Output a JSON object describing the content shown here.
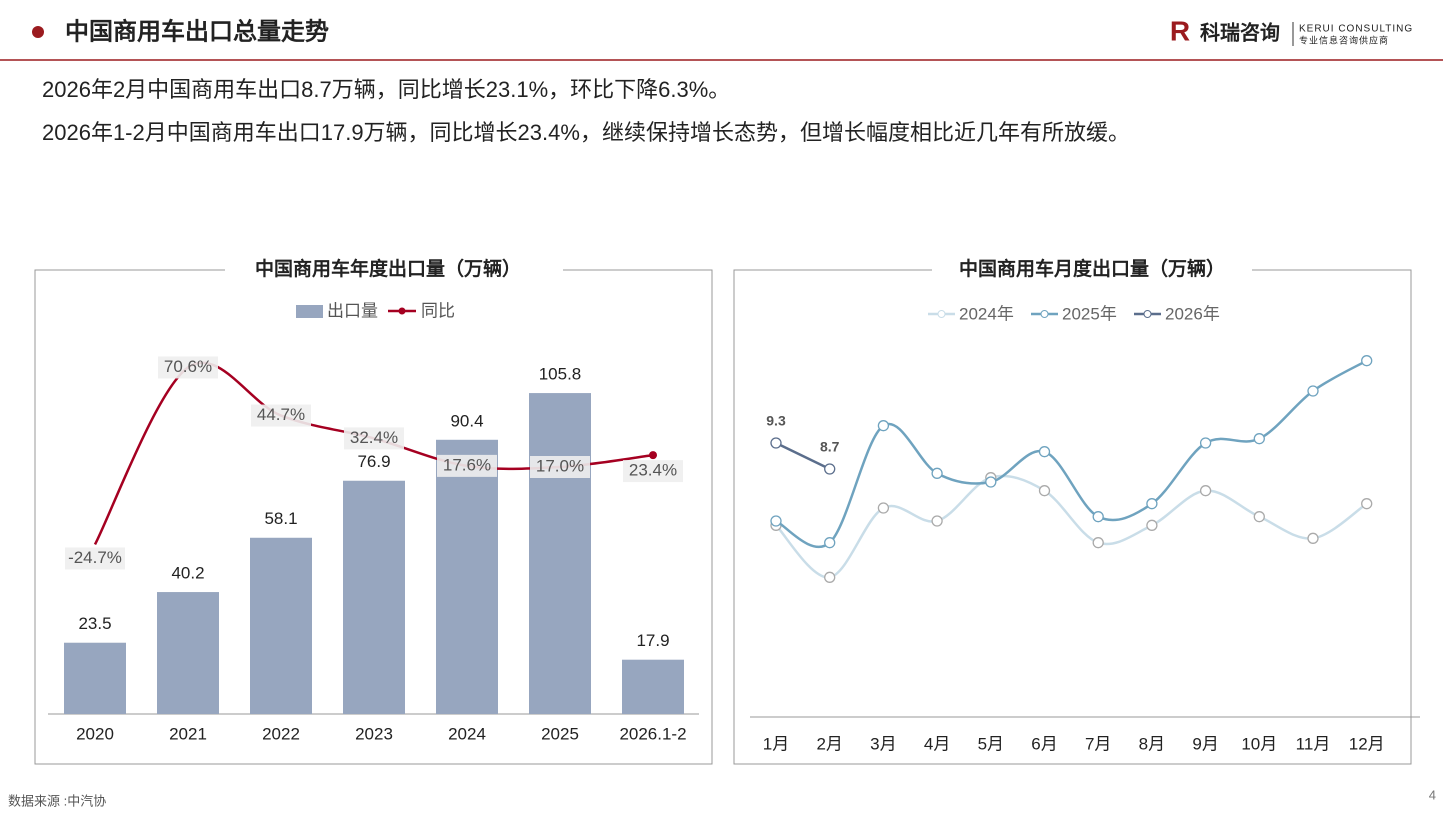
{
  "header": {
    "title": "中国商用车出口总量走势",
    "logo_mark": "R",
    "logo_name": "科瑞咨询",
    "logo_en": "KERUI CONSULTING",
    "logo_tagline": "专业信息咨询供应商"
  },
  "summary": [
    "2026年2月中国商用车出口8.7万辆，同比增长23.1%，环比下降6.3%。",
    "2026年1-2月中国商用车出口17.9万辆，同比增长23.4%，继续保持增长态势，但增长幅度相比近几年有所放缓。"
  ],
  "source": "数据来源 :中汽协",
  "page_number": "4",
  "chart_data": [
    {
      "type": "combo",
      "title": "中国商用车年度出口量（万辆）",
      "categories": [
        "2020",
        "2021",
        "2022",
        "2023",
        "2024",
        "2025",
        "2026.1-2"
      ],
      "series": [
        {
          "name": "出口量",
          "type": "bar",
          "color": "#97a6bf",
          "values": [
            23.5,
            40.2,
            58.1,
            76.9,
            90.4,
            105.8,
            17.9
          ]
        },
        {
          "name": "同比",
          "type": "line",
          "axis": "y2",
          "color": "#a50021",
          "values": [
            -24.7,
            70.6,
            44.7,
            32.4,
            17.6,
            17.0,
            23.4
          ],
          "value_labels": [
            "-24.7%",
            "70.6%",
            "44.7%",
            "32.4%",
            "17.6%",
            "17.0%",
            "23.4%"
          ]
        }
      ],
      "ylim": [
        0,
        120
      ],
      "y2lim": [
        -116,
        80
      ],
      "legend": "top"
    },
    {
      "type": "line",
      "title": "中国商用车月度出口量（万辆）",
      "categories": [
        "1月",
        "2月",
        "3月",
        "4月",
        "5月",
        "6月",
        "7月",
        "8月",
        "9月",
        "10月",
        "11月",
        "12月"
      ],
      "series": [
        {
          "name": "2024年",
          "color": "#c9dde8",
          "values": [
            7.4,
            6.2,
            7.8,
            7.5,
            8.5,
            8.2,
            7.0,
            7.4,
            8.2,
            7.6,
            7.1,
            7.9
          ]
        },
        {
          "name": "2025年",
          "color": "#6fa3bf",
          "values": [
            7.5,
            7.0,
            9.7,
            8.6,
            8.4,
            9.1,
            7.6,
            7.9,
            9.3,
            9.4,
            10.5,
            11.2
          ]
        },
        {
          "name": "2026年",
          "color": "#5b6e8c",
          "values": [
            9.3,
            8.7,
            null,
            null,
            null,
            null,
            null,
            null,
            null,
            null,
            null,
            null
          ],
          "show_labels": true
        }
      ],
      "ylim": [
        3,
        12
      ],
      "legend": "top"
    }
  ]
}
